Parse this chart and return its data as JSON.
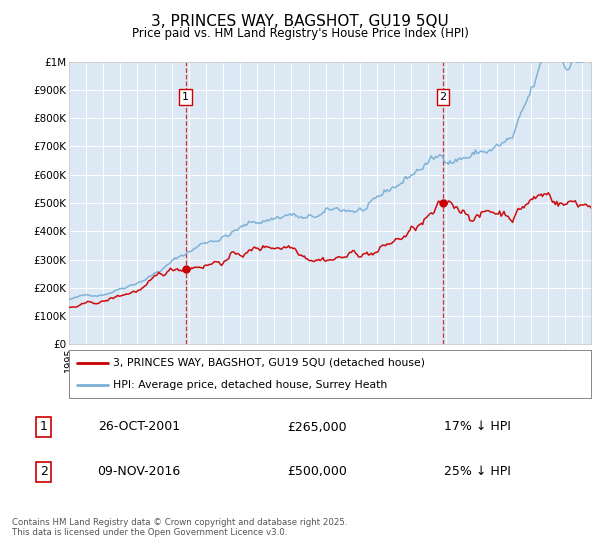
{
  "title": "3, PRINCES WAY, BAGSHOT, GU19 5QU",
  "subtitle": "Price paid vs. HM Land Registry's House Price Index (HPI)",
  "title_fontsize": 11,
  "subtitle_fontsize": 9,
  "background_color": "#ffffff",
  "plot_bg_color": "#dce9f5",
  "grid_color": "#ffffff",
  "red_color": "#cc0000",
  "blue_color": "#7bafd4",
  "sale1_year": 2001.82,
  "sale1_price": 265000,
  "sale1_label": "26-OCT-2001",
  "sale1_hpi_pct": "17% ↓ HPI",
  "sale2_year": 2016.86,
  "sale2_price": 500000,
  "sale2_label": "09-NOV-2016",
  "sale2_hpi_pct": "25% ↓ HPI",
  "legend1": "3, PRINCES WAY, BAGSHOT, GU19 5QU (detached house)",
  "legend2": "HPI: Average price, detached house, Surrey Heath",
  "footer": "Contains HM Land Registry data © Crown copyright and database right 2025.\nThis data is licensed under the Open Government Licence v3.0.",
  "xmin": 1995,
  "xmax": 2025.5,
  "ymin": 0,
  "ymax": 1000000,
  "yticks": [
    0,
    100000,
    200000,
    300000,
    400000,
    500000,
    600000,
    700000,
    800000,
    900000,
    1000000
  ],
  "ytick_labels": [
    "£0",
    "£100K",
    "£200K",
    "£300K",
    "£400K",
    "£500K",
    "£600K",
    "£700K",
    "£800K",
    "£900K",
    "£1M"
  ]
}
